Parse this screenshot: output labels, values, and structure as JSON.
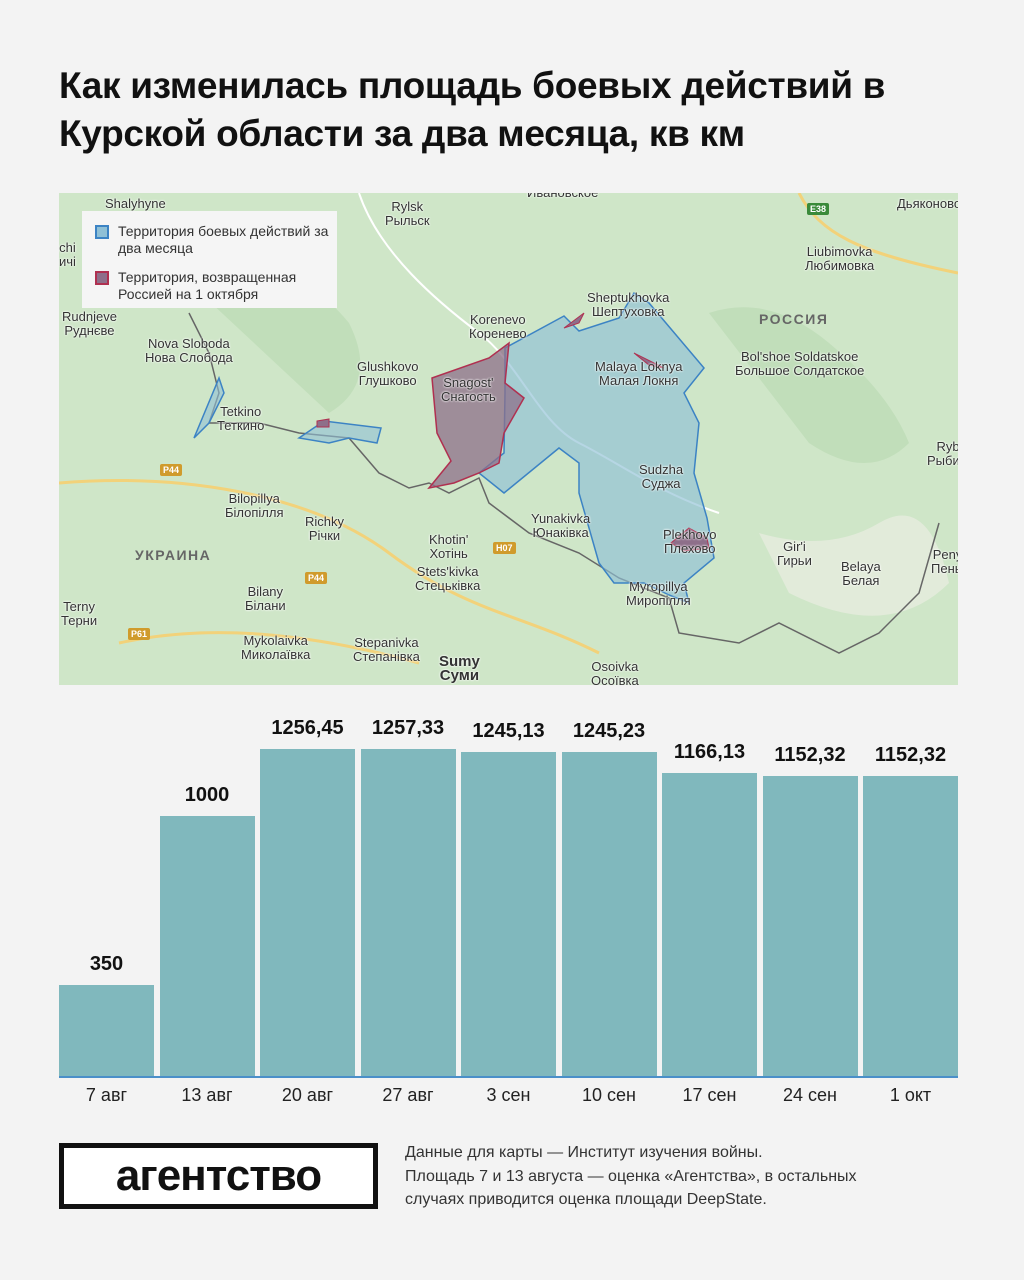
{
  "title": "Как изменилась площадь боевых действий в Курской области за два месяца, кв км",
  "legend": {
    "fighting": "Территория боевых действий за два месяца",
    "returned": "Территория, возвращенная Россией на 1 октября"
  },
  "colors": {
    "fighting_fill": "#8fc0d6",
    "fighting_stroke": "#3c83c4",
    "returned_fill": "#8e6f8a",
    "returned_stroke": "#b03050",
    "bars": "#80b8bd",
    "axis": "#4a8fc9"
  },
  "map": {
    "places": [
      [
        "Shalyhyne",
        ""
      ],
      [
        "Rylsk",
        "Рыльск"
      ],
      [
        "",
        "Ивановское"
      ],
      [
        "",
        "Дьяконово"
      ],
      [
        "Liubimovka",
        "Любимовка"
      ],
      [
        "chi",
        "ичі"
      ],
      [
        "Rudnjeve",
        "Руднєве"
      ],
      [
        "Nova Sloboda",
        "Нова Слобода"
      ],
      [
        "Glushkovo",
        "Глушково"
      ],
      [
        "Korenevo",
        "Коренево"
      ],
      [
        "Sheptukhovka",
        "Шептуховка"
      ],
      [
        "Bol'shoe Soldatskoe",
        "Большое Солдатское"
      ],
      [
        "Snagost'",
        "Снагость"
      ],
      [
        "Malaya Loknya",
        "Малая Локня"
      ],
      [
        "Tetkino",
        "Теткино"
      ],
      [
        "Rybinskі Budy",
        "Рыбинские Буды"
      ],
      [
        "Sudzha",
        "Суджа"
      ],
      [
        "Bilopillya",
        "Білопілля"
      ],
      [
        "Richky",
        "Річки"
      ],
      [
        "Yunakivka",
        "Юнаківка"
      ],
      [
        "Khotin'",
        "Хотінь"
      ],
      [
        "Plekhovo",
        "Плехово"
      ],
      [
        "Gir'i",
        "Гирьи"
      ],
      [
        "Belaya",
        "Белая"
      ],
      [
        "Peny",
        "Пены"
      ],
      [
        "Bilany",
        "Білани"
      ],
      [
        "Stets'kivka",
        "Стецьківка"
      ],
      [
        "Myropillya",
        "Миропілля"
      ],
      [
        "Terny",
        "Терни"
      ],
      [
        "Mykolaivka",
        "Миколаївка"
      ],
      [
        "Stepanivka",
        "Степанівка"
      ],
      [
        "Sumy",
        "Суми"
      ],
      [
        "Osoivka",
        "Осоївка"
      ]
    ],
    "countries": {
      "russia": "РОССИЯ",
      "ukraine": "УКРАИНА"
    },
    "roads": {
      "e38": "E38",
      "p44a": "P44",
      "p44b": "P44",
      "h07": "H07",
      "p61": "P61"
    }
  },
  "chart_data": {
    "type": "bar",
    "title": "Как изменилась площадь боевых действий в Курской области за два месяца, кв км",
    "categories": [
      "7 авг",
      "13 авг",
      "20 авг",
      "27 авг",
      "3 сен",
      "10 сен",
      "17 сен",
      "24 сен",
      "1 окт"
    ],
    "values": [
      350,
      1000,
      1256.45,
      1257.33,
      1245.13,
      1245.23,
      1166.13,
      1152.32,
      1152.32
    ],
    "labels": [
      "350",
      "1000",
      "1256,45",
      "1257,33",
      "1245,13",
      "1245,23",
      "1166,13",
      "1152,32",
      "1152,32"
    ],
    "ylim": [
      0,
      1257.33
    ],
    "grid": false
  },
  "footer": {
    "logo": "агентство",
    "note": [
      "Данные для карты — Институт изучения войны.",
      "Площадь 7 и 13 августа — оценка «Агентства», в остальных",
      "случаях приводится оценка площади DeepState."
    ]
  }
}
